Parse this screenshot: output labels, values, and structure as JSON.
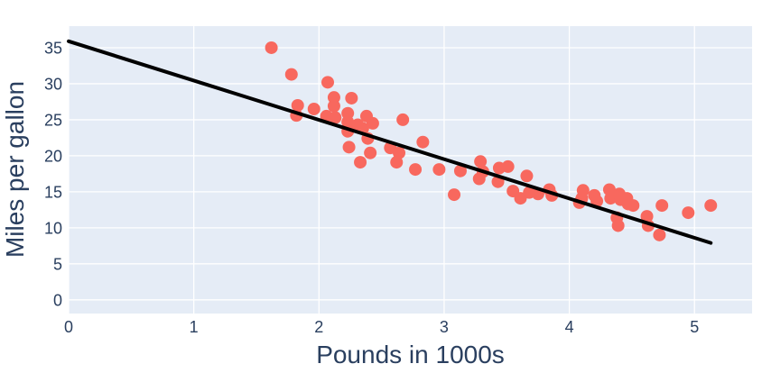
{
  "chart_data": {
    "type": "scatter",
    "title": "",
    "xlabel": "Pounds in 1000s",
    "ylabel": "Miles per gallon",
    "xlim": [
      0,
      5.46
    ],
    "ylim": [
      -1.9,
      38.0
    ],
    "xticks": [
      0,
      1,
      2,
      3,
      4,
      5
    ],
    "yticks": [
      0,
      5,
      10,
      15,
      20,
      25,
      30,
      35
    ],
    "grid": true,
    "legend": "none",
    "plot_bgcolor": "#e5ecf6",
    "grid_color": "#ffffff",
    "marker_color": "#f8685e",
    "trendline_color": "#000000",
    "tick_color": "#2a3f5f",
    "points": [
      [
        1.62,
        35.0
      ],
      [
        1.78,
        31.3
      ],
      [
        2.07,
        30.2
      ],
      [
        1.83,
        27.0
      ],
      [
        1.82,
        25.6
      ],
      [
        1.96,
        26.5
      ],
      [
        2.12,
        28.1
      ],
      [
        2.12,
        26.9
      ],
      [
        2.26,
        28.0
      ],
      [
        2.06,
        25.5
      ],
      [
        2.13,
        25.3
      ],
      [
        2.23,
        25.9
      ],
      [
        2.23,
        24.7
      ],
      [
        2.31,
        24.3
      ],
      [
        2.38,
        25.5
      ],
      [
        2.35,
        23.8
      ],
      [
        2.43,
        24.5
      ],
      [
        2.23,
        23.4
      ],
      [
        2.24,
        21.2
      ],
      [
        2.39,
        22.4
      ],
      [
        2.41,
        20.4
      ],
      [
        2.33,
        19.1
      ],
      [
        2.67,
        25.0
      ],
      [
        2.83,
        21.9
      ],
      [
        2.57,
        21.1
      ],
      [
        2.64,
        20.4
      ],
      [
        2.62,
        19.1
      ],
      [
        2.77,
        18.1
      ],
      [
        2.96,
        18.1
      ],
      [
        3.13,
        17.9
      ],
      [
        3.08,
        14.6
      ],
      [
        3.29,
        19.2
      ],
      [
        3.31,
        17.8
      ],
      [
        3.28,
        16.8
      ],
      [
        3.44,
        18.3
      ],
      [
        3.51,
        18.5
      ],
      [
        3.43,
        16.4
      ],
      [
        3.66,
        17.2
      ],
      [
        3.55,
        15.1
      ],
      [
        3.61,
        14.1
      ],
      [
        3.68,
        14.9
      ],
      [
        3.75,
        14.7
      ],
      [
        3.84,
        15.3
      ],
      [
        3.86,
        14.5
      ],
      [
        4.11,
        15.2
      ],
      [
        4.1,
        14.1
      ],
      [
        4.08,
        13.5
      ],
      [
        4.2,
        14.5
      ],
      [
        4.22,
        13.7
      ],
      [
        4.32,
        15.3
      ],
      [
        4.33,
        14.1
      ],
      [
        4.4,
        14.7
      ],
      [
        4.41,
        13.9
      ],
      [
        4.46,
        14.1
      ],
      [
        4.47,
        13.3
      ],
      [
        4.51,
        13.1
      ],
      [
        4.38,
        11.4
      ],
      [
        4.39,
        10.3
      ],
      [
        4.62,
        11.6
      ],
      [
        4.63,
        10.3
      ],
      [
        4.74,
        13.1
      ],
      [
        4.72,
        9.0
      ],
      [
        4.95,
        12.1
      ],
      [
        5.13,
        13.1
      ]
    ],
    "trendline": {
      "x": [
        0.0,
        5.13
      ],
      "y": [
        35.9,
        7.9
      ]
    }
  }
}
